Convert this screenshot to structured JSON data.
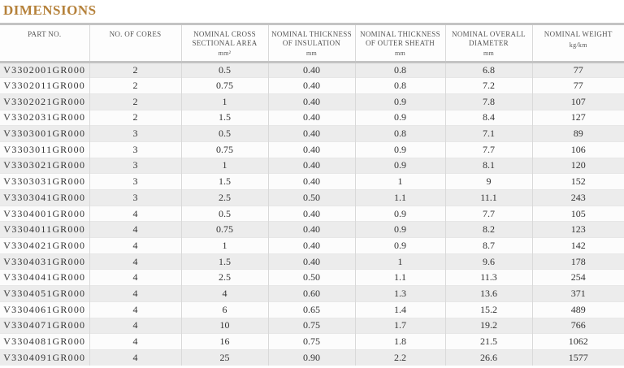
{
  "page_title": "DIMENSIONS",
  "colors": {
    "title_accent": "#b5813a",
    "header_band": "#c3c3c3",
    "row_stripe": "#ececec",
    "cell_text": "#333333"
  },
  "table": {
    "columns": [
      {
        "label": "PART NO.",
        "unit": ""
      },
      {
        "label": "NO. OF CORES",
        "unit": ""
      },
      {
        "label": "NOMINAL CROSS SECTIONAL AREA",
        "unit": "mm²"
      },
      {
        "label": "NOMINAL THICKNESS OF INSULATION",
        "unit": "mm"
      },
      {
        "label": "NOMINAL THICKNESS OF OUTER SHEATH",
        "unit": "mm"
      },
      {
        "label": "NOMINAL OVERALL DIAMETER",
        "unit": "mm"
      },
      {
        "label": "NOMINAL WEIGHT",
        "unit": "kg/km"
      }
    ],
    "rows": [
      [
        "V3302001GR000",
        "2",
        "0.5",
        "0.40",
        "0.8",
        "6.8",
        "77"
      ],
      [
        "V3302011GR000",
        "2",
        "0.75",
        "0.40",
        "0.8",
        "7.2",
        "77"
      ],
      [
        "V3302021GR000",
        "2",
        "1",
        "0.40",
        "0.9",
        "7.8",
        "107"
      ],
      [
        "V3302031GR000",
        "2",
        "1.5",
        "0.40",
        "0.9",
        "8.4",
        "127"
      ],
      [
        "V3303001GR000",
        "3",
        "0.5",
        "0.40",
        "0.8",
        "7.1",
        "89"
      ],
      [
        "V3303011GR000",
        "3",
        "0.75",
        "0.40",
        "0.9",
        "7.7",
        "106"
      ],
      [
        "V3303021GR000",
        "3",
        "1",
        "0.40",
        "0.9",
        "8.1",
        "120"
      ],
      [
        "V3303031GR000",
        "3",
        "1.5",
        "0.40",
        "1",
        "9",
        "152"
      ],
      [
        "V3303041GR000",
        "3",
        "2.5",
        "0.50",
        "1.1",
        "11.1",
        "243"
      ],
      [
        "V3304001GR000",
        "4",
        "0.5",
        "0.40",
        "0.9",
        "7.7",
        "105"
      ],
      [
        "V3304011GR000",
        "4",
        "0.75",
        "0.40",
        "0.9",
        "8.2",
        "123"
      ],
      [
        "V3304021GR000",
        "4",
        "1",
        "0.40",
        "0.9",
        "8.7",
        "142"
      ],
      [
        "V3304031GR000",
        "4",
        "1.5",
        "0.40",
        "1",
        "9.6",
        "178"
      ],
      [
        "V3304041GR000",
        "4",
        "2.5",
        "0.50",
        "1.1",
        "11.3",
        "254"
      ],
      [
        "V3304051GR000",
        "4",
        "4",
        "0.60",
        "1.3",
        "13.6",
        "371"
      ],
      [
        "V3304061GR000",
        "4",
        "6",
        "0.65",
        "1.4",
        "15.2",
        "489"
      ],
      [
        "V3304071GR000",
        "4",
        "10",
        "0.75",
        "1.7",
        "19.2",
        "766"
      ],
      [
        "V3304081GR000",
        "4",
        "16",
        "0.75",
        "1.8",
        "21.5",
        "1062"
      ],
      [
        "V3304091GR000",
        "4",
        "25",
        "0.90",
        "2.2",
        "26.6",
        "1577"
      ]
    ]
  }
}
